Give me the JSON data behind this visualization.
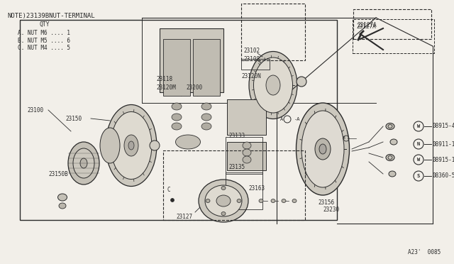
{
  "bg_color": "#f2efe9",
  "line_color": "#2a2a2a",
  "note_text": "NOTE)23139BNUT-TERMINAL",
  "qty_lines": [
    "QTY",
    "A. NUT M6 .... 1",
    "B. NUT M5 .... 6",
    "C. NUT M4 .... 5"
  ],
  "page_ref": "A23'  0085",
  "font_size_note": 6.5,
  "font_size_label": 5.5,
  "font_size_ref": 5.5
}
